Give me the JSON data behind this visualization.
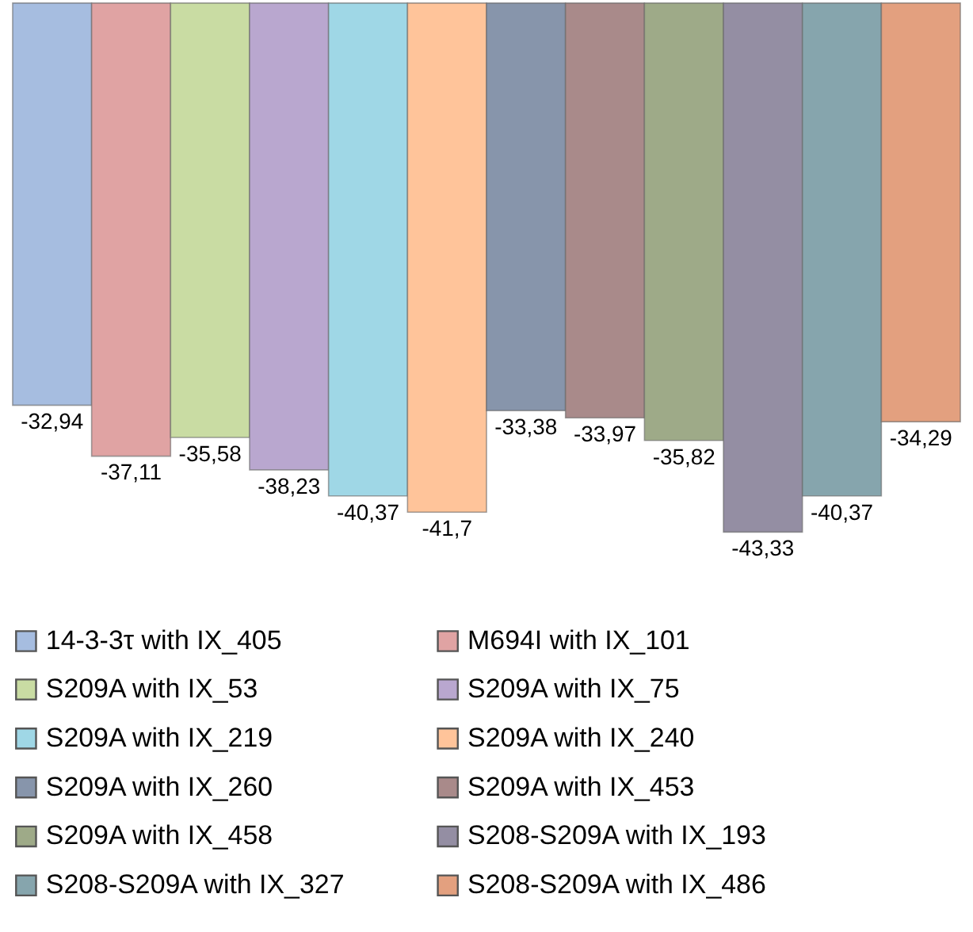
{
  "chart_data": {
    "type": "bar",
    "categories": [
      null
    ],
    "tick_labels": false,
    "legend": "bottom",
    "grid": false,
    "series": [
      {
        "name": "14-3-3τ with IX_405",
        "color": "#a6bde0",
        "values": [
          -32.94
        ],
        "value_labels": [
          "-32,94"
        ]
      },
      {
        "name": "M694I with IX_101",
        "color": "#e0a3a3",
        "values": [
          -37.11
        ],
        "value_labels": [
          "-37,11"
        ]
      },
      {
        "name": "S209A with IX_53",
        "color": "#c9dca3",
        "values": [
          -35.58
        ],
        "value_labels": [
          "-35,58"
        ]
      },
      {
        "name": "S209A with IX_75",
        "color": "#b9a7cf",
        "values": [
          -38.23
        ],
        "value_labels": [
          "-38,23"
        ]
      },
      {
        "name": "S209A with IX_219",
        "color": "#9fd7e6",
        "values": [
          -40.37
        ],
        "value_labels": [
          "-40,37"
        ]
      },
      {
        "name": "S209A with IX_240",
        "color": "#ffc49a",
        "values": [
          -41.7
        ],
        "value_labels": [
          "-41,7"
        ]
      },
      {
        "name": "S209A with IX_260",
        "color": "#8795ab",
        "values": [
          -33.38
        ],
        "value_labels": [
          "-33,38"
        ]
      },
      {
        "name": "S209A with IX_453",
        "color": "#a98a8a",
        "values": [
          -33.97
        ],
        "value_labels": [
          "-33,97"
        ]
      },
      {
        "name": "S209A with IX_458",
        "color": "#9eaa88",
        "values": [
          -35.82
        ],
        "value_labels": [
          "-35,82"
        ]
      },
      {
        "name": "S208-S209A with IX_193",
        "color": "#948ea3",
        "values": [
          -43.33
        ],
        "value_labels": [
          "-43,33"
        ]
      },
      {
        "name": "S208-S209A with IX_327",
        "color": "#86a5ad",
        "values": [
          -40.37
        ],
        "value_labels": [
          "-40,37"
        ]
      },
      {
        "name": "S208-S209A with IX_486",
        "color": "#e3a07f",
        "values": [
          -34.29
        ],
        "value_labels": [
          "-34,29"
        ]
      }
    ]
  }
}
